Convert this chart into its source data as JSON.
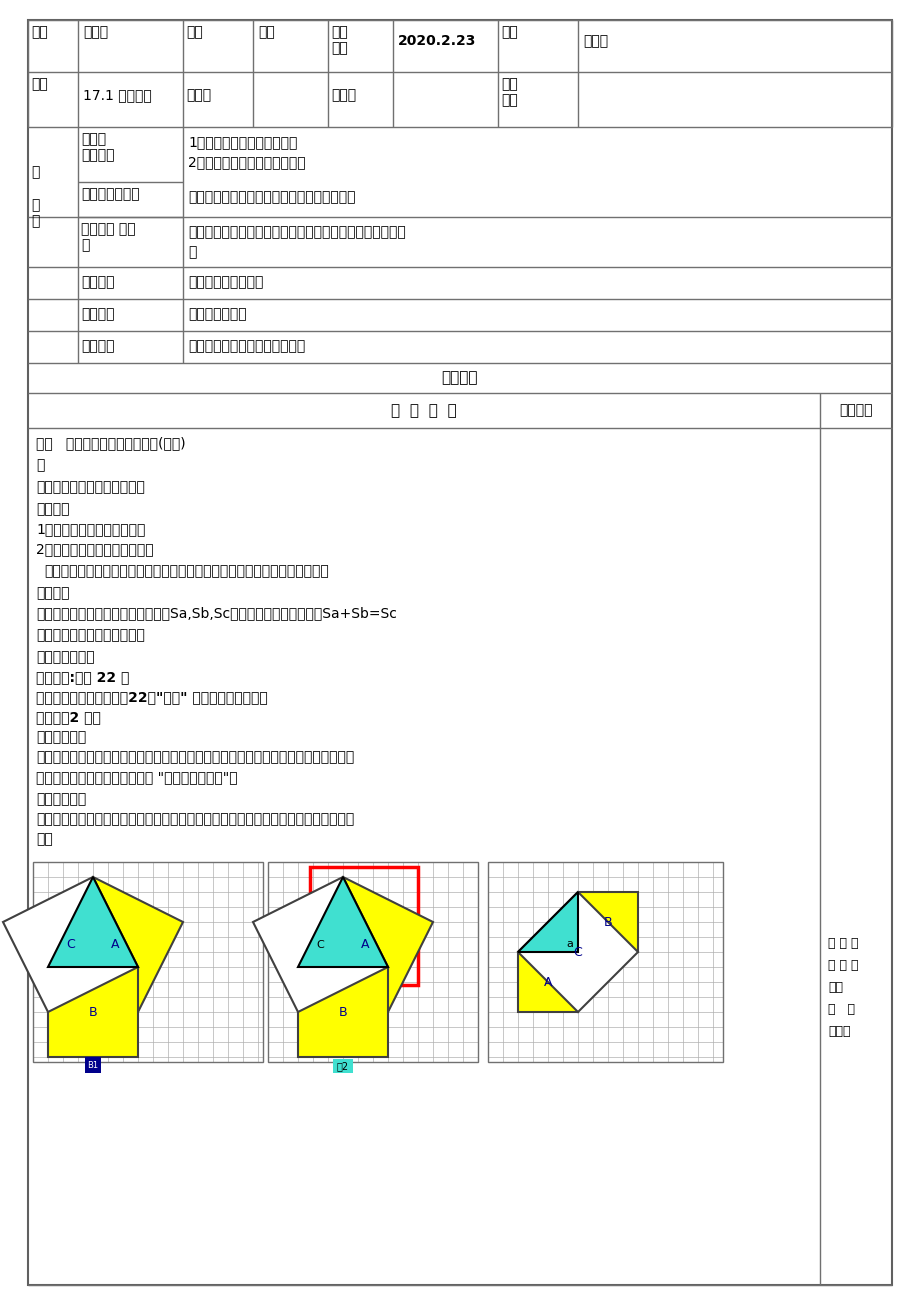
{
  "bg_color": "#ffffff",
  "page_title": "17.1",
  "row1_cells": [
    "年级",
    "八年级",
    "学科",
    "数学",
    "制定\n日期",
    "2020.2.23",
    "课型",
    "新授课"
  ],
  "row2_cells": [
    "课题",
    "17.1 勾股定理",
    "主备人",
    "",
    "执教人",
    "",
    "使用\n时间",
    ""
  ],
  "edu_left": "教\n\n目\n标",
  "edu_sub1": "知识与\n技能目标",
  "edu_sub2": "学过与方法目标",
  "edu_sub3": "情感态度 与价\n值",
  "edu_content1a": "1、经历勾股定理的探究过程",
  "edu_content1b": "2、能用勾股定理解决简单问题",
  "edu_content2": "经历探索勾股定理的过程，认识和掌握该定理",
  "edu_content3a": "通过对我国古代研究勾股定理成就的介绍，培养民族自豪感",
  "edu_content3b": "观",
  "row4_label": "教学重点",
  "row4_content": "认识和会用勾股定理",
  "row5_label": "教学难点",
  "row5_content": "勾股定理的证明",
  "row6_label": "教学方法",
  "row6_content": "自学质疑、合作探究、当堂达标",
  "row7_header": "教学过程",
  "row8_left": "教  学  过  程",
  "row8_right": "设计意图",
  "sec1_title": "一、   【复习旧知、做实铺垫】(一检)",
  "sec1_body": "无",
  "sec2_title": "二、【引课示标、明确方向】",
  "sec2_biaoti": "【示标】",
  "sec2_line1": "1、经历勾股定理的探究过程",
  "sec2_line2": "2、能用勾股定理解决简单问题",
  "sec2_process": "【处理方式】教师出示目标，学生齐读目标，教师提炼本节关键目标词并板书",
  "sec2_scene": "情景引入",
  "sec2_pythagoras": "毕达哥拉斯作客，以他的发现来探究Sa,Sb,Sc之间的关系。初步得出：Sa+Sb=Sc",
  "sec3_title": "三、【自学质疑、合作探究】",
  "sec3_sub1": "【自学探究一】",
  "sec3_range": "【范围】:课本 22 页",
  "sec3_req": "【要求】认真阅读，解决22页\"思考\" 所提问题并说明理由",
  "sec3_time": "【时间】2 分钟",
  "sec3_method": "【处理方式】",
  "sec3_body1": "学生独立自学，老师进行方法的指点与监督，要让学生能够较好的投入进去新知识的学",
  "sec3_body2": "习，教师巡视督促学生自学时的 \"圈、点、标、画\"；",
  "sec3_jiaoshi": "【教师点拨】",
  "sec3_show1": "教师出示课件展示，通过探究的形式分别出示等腰直角三角形与一般直角三角形的三边",
  "sec3_show2": "关系",
  "right_text": [
    "探 究 一",
    "探 究 二",
    "总结",
    "探   究",
    "一：你"
  ],
  "yellow": "#ffff00",
  "cyan": "#40e0d0",
  "dark_blue": "#00008B",
  "grid_color": "#b0b0b0",
  "border_color": "#707070",
  "red": "#ff0000"
}
